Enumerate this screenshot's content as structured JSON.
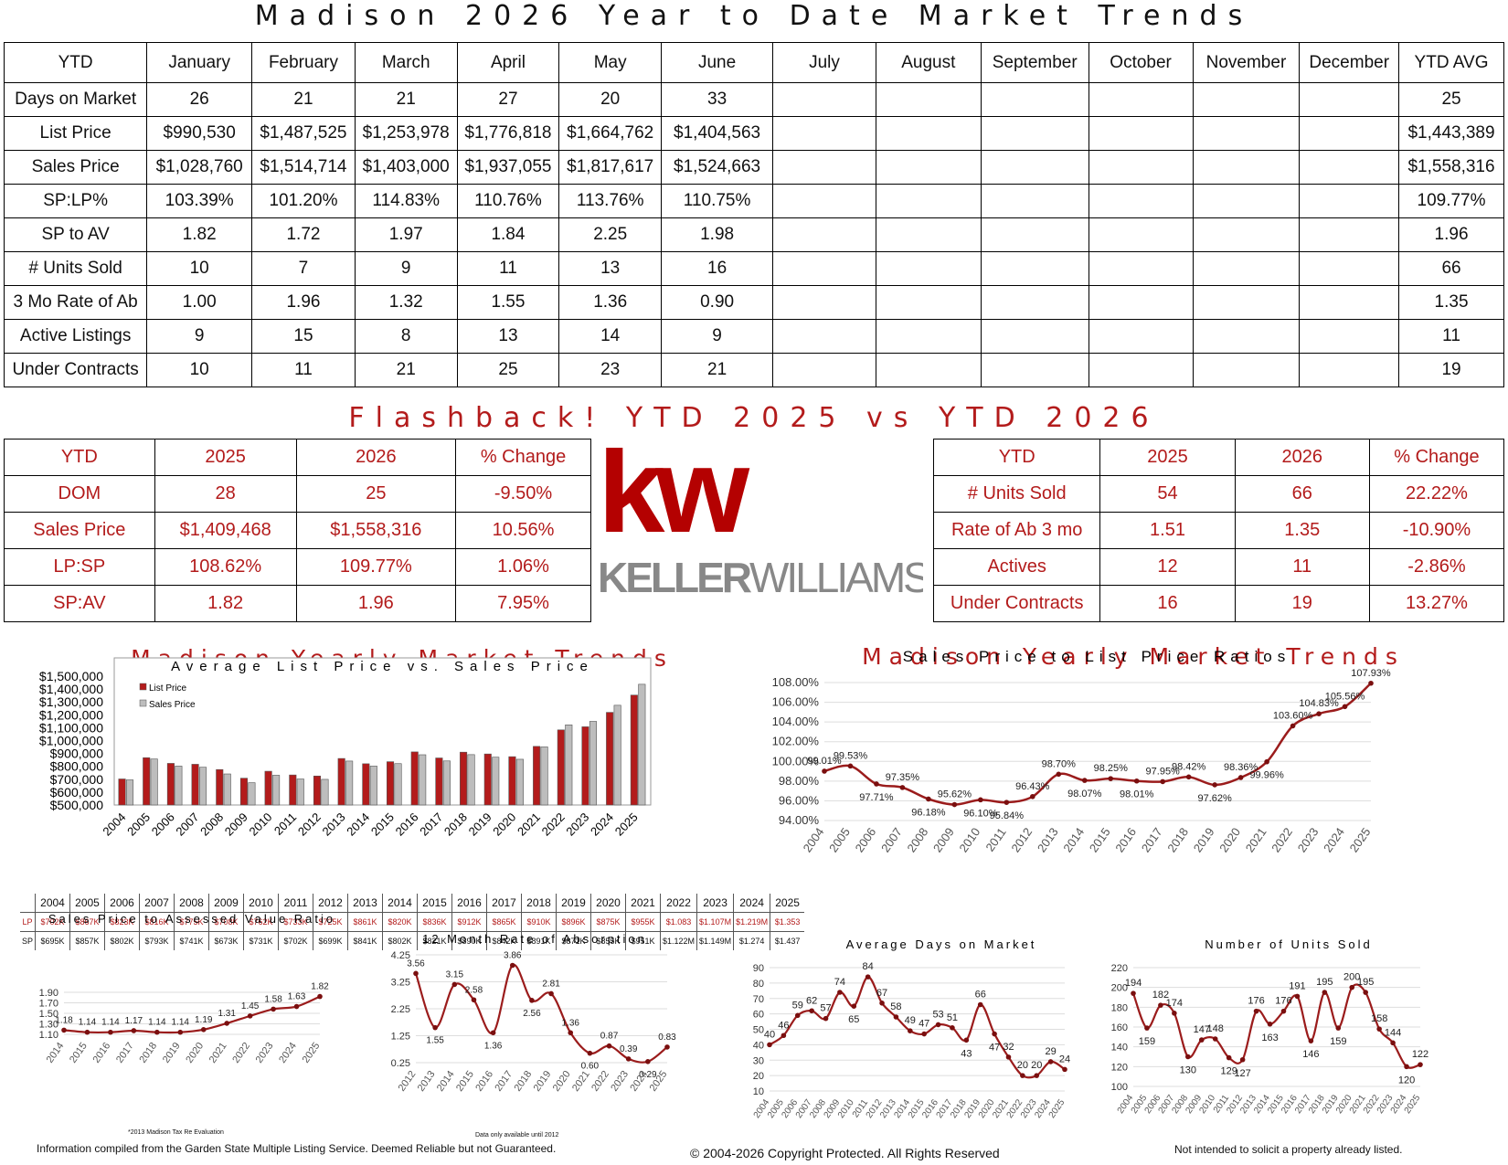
{
  "main_title": "Madison 2026 Year to Date Market Trends",
  "ytd_table": {
    "header": [
      "YTD",
      "January",
      "February",
      "March",
      "April",
      "May",
      "June",
      "July",
      "August",
      "September",
      "October",
      "November",
      "December",
      "YTD AVG"
    ],
    "rows": [
      [
        "Days on Market",
        "26",
        "21",
        "21",
        "27",
        "20",
        "33",
        "",
        "",
        "",
        "",
        "",
        "",
        "25"
      ],
      [
        "List Price",
        "$990,530",
        "$1,487,525",
        "$1,253,978",
        "$1,776,818",
        "$1,664,762",
        "$1,404,563",
        "",
        "",
        "",
        "",
        "",
        "",
        "$1,443,389"
      ],
      [
        "Sales Price",
        "$1,028,760",
        "$1,514,714",
        "$1,403,000",
        "$1,937,055",
        "$1,817,617",
        "$1,524,663",
        "",
        "",
        "",
        "",
        "",
        "",
        "$1,558,316"
      ],
      [
        "SP:LP%",
        "103.39%",
        "101.20%",
        "114.83%",
        "110.76%",
        "113.76%",
        "110.75%",
        "",
        "",
        "",
        "",
        "",
        "",
        "109.77%"
      ],
      [
        "SP to AV",
        "1.82",
        "1.72",
        "1.97",
        "1.84",
        "2.25",
        "1.98",
        "",
        "",
        "",
        "",
        "",
        "",
        "1.96"
      ],
      [
        "# Units Sold",
        "10",
        "7",
        "9",
        "11",
        "13",
        "16",
        "",
        "",
        "",
        "",
        "",
        "",
        "66"
      ],
      [
        "3 Mo Rate of Ab",
        "1.00",
        "1.96",
        "1.32",
        "1.55",
        "1.36",
        "0.90",
        "",
        "",
        "",
        "",
        "",
        "",
        "1.35"
      ],
      [
        "Active Listings",
        "9",
        "15",
        "8",
        "13",
        "14",
        "9",
        "",
        "",
        "",
        "",
        "",
        "",
        "11"
      ],
      [
        "Under Contracts",
        "10",
        "11",
        "21",
        "25",
        "23",
        "21",
        "",
        "",
        "",
        "",
        "",
        "",
        "19"
      ]
    ]
  },
  "flashback_title": "Flashback! YTD 2025 vs YTD 2026",
  "flash_left": [
    [
      "YTD",
      "2025",
      "2026",
      "% Change"
    ],
    [
      "DOM",
      "28",
      "25",
      "-9.50%"
    ],
    [
      "Sales Price",
      "$1,409,468",
      "$1,558,316",
      "10.56%"
    ],
    [
      "LP:SP",
      "108.62%",
      "109.77%",
      "1.06%"
    ],
    [
      "SP:AV",
      "1.82",
      "1.96",
      "7.95%"
    ]
  ],
  "flash_right": [
    [
      "YTD",
      "2025",
      "2026",
      "% Change"
    ],
    [
      "# Units Sold",
      "54",
      "66",
      "22.22%"
    ],
    [
      "Rate of Ab 3 mo",
      "1.51",
      "1.35",
      "-10.90%"
    ],
    [
      "Actives",
      "12",
      "11",
      "-2.86%"
    ],
    [
      "Under Contracts",
      "16",
      "19",
      "13.27%"
    ]
  ],
  "logo": {
    "mark": "kw",
    "name_a": "KELLER",
    "name_b": "WILLIAMS",
    "registered": "®",
    "color_red": "#b40101",
    "color_gray": "#888888"
  },
  "section_titles": {
    "left": "Madison Yearly Market Trends",
    "right": "Madison Yearly Market Trends"
  },
  "lpsp_grid": {
    "years": [
      "2004",
      "2005",
      "2006",
      "2007",
      "2008",
      "2009",
      "2010",
      "2011",
      "2012",
      "2013",
      "2014",
      "2015",
      "2016",
      "2017",
      "2018",
      "2019",
      "2020",
      "2021",
      "2022",
      "2023",
      "2024",
      "2025"
    ],
    "lp_label": "LP",
    "sp_label": "SP",
    "lp": [
      "$702K",
      "$867K",
      "$823K",
      "$816K",
      "$775K",
      "$708K",
      "$762K",
      "$733K",
      "$725K",
      "$861K",
      "$820K",
      "$836K",
      "$912K",
      "$865K",
      "$910K",
      "$896K",
      "$875K",
      "$955K",
      "$1.083",
      "$1.107M",
      "$1.219M",
      "$1.353"
    ],
    "sp": [
      "$695K",
      "$857K",
      "$802K",
      "$793K",
      "$741K",
      "$673K",
      "$731K",
      "$702K",
      "$699K",
      "$841K",
      "$802K",
      "$821K",
      "$890K",
      "$842K",
      "$891K",
      "$871K",
      "$855K",
      "$951K",
      "$1.122M",
      "$1.149M",
      "$1.274",
      "$1.437"
    ]
  },
  "chart_data": [
    {
      "type": "bar",
      "title": "Average List Price vs. Sales Price",
      "categories": [
        "2004",
        "2005",
        "2006",
        "2007",
        "2008",
        "2009",
        "2010",
        "2011",
        "2012",
        "2013",
        "2014",
        "2015",
        "2016",
        "2017",
        "2018",
        "2019",
        "2020",
        "2021",
        "2022",
        "2023",
        "2024",
        "2025"
      ],
      "series": [
        {
          "name": "List Price",
          "color": "#b31b1b",
          "values": [
            702,
            867,
            823,
            816,
            775,
            708,
            762,
            733,
            725,
            861,
            820,
            836,
            912,
            865,
            910,
            896,
            875,
            955,
            1083,
            1107,
            1219,
            1353
          ]
        },
        {
          "name": "Sales Price",
          "color": "#bdbdbd",
          "values": [
            695,
            857,
            802,
            793,
            741,
            673,
            731,
            702,
            699,
            841,
            802,
            821,
            890,
            842,
            891,
            871,
            855,
            951,
            1122,
            1149,
            1274,
            1437
          ]
        }
      ],
      "yticks": [
        "$500,000",
        "$600,000",
        "$700,000",
        "$800,000",
        "$900,000",
        "$1,000,000",
        "$1,100,000",
        "$1,200,000",
        "$1,300,000",
        "$1,400,000",
        "$1,500,000"
      ],
      "ylim": [
        500,
        1500
      ],
      "legend": "top-left"
    },
    {
      "type": "line",
      "title": "Sales Price to List Price Ratios",
      "x": [
        "2004",
        "2005",
        "2006",
        "2007",
        "2008",
        "2009",
        "2010",
        "2011",
        "2012",
        "2013",
        "2014",
        "2015",
        "2016",
        "2017",
        "2018",
        "2019",
        "2020",
        "2021",
        "2022",
        "2023",
        "2024",
        "2025"
      ],
      "values": [
        99.01,
        99.53,
        97.71,
        97.35,
        96.18,
        95.62,
        96.1,
        95.84,
        96.43,
        98.7,
        98.07,
        98.25,
        98.01,
        97.95,
        98.42,
        97.62,
        98.36,
        99.96,
        103.6,
        104.83,
        105.56,
        107.93
      ],
      "labels": [
        "99.01%",
        "99.53%",
        "97.71%",
        "97.35%",
        "96.18%",
        "95.62%",
        "96.10%",
        "95.84%",
        "96.43%",
        "98.70%",
        "98.07%",
        "98.25%",
        "98.01%",
        "97.95%",
        "98.42%",
        "97.62%",
        "98.36%",
        "99.96%",
        "103.60%",
        "104.83%",
        "105.56%",
        "107.93%"
      ],
      "yticks": [
        "94.00%",
        "96.00%",
        "98.00%",
        "100.00%",
        "102.00%",
        "104.00%",
        "106.00%",
        "108.00%"
      ],
      "ylim": [
        94,
        108
      ]
    },
    {
      "type": "line",
      "title": "Sales Price to Assessed Value Ratio",
      "x": [
        "2014",
        "2015",
        "2016",
        "2017",
        "2018",
        "2019",
        "2020",
        "2021",
        "2022",
        "2023",
        "2024",
        "2025"
      ],
      "values": [
        1.18,
        1.14,
        1.14,
        1.17,
        1.14,
        1.14,
        1.19,
        1.31,
        1.45,
        1.58,
        1.63,
        1.82
      ],
      "labels": [
        "1.18",
        "1.14",
        "1.14",
        "1.17",
        "1.14",
        "1.14",
        "1.19",
        "1.31",
        "1.45",
        "1.58",
        "1.63",
        "1.82"
      ],
      "yticks": [
        "1.10",
        "1.30",
        "1.50",
        "1.70",
        "1.90"
      ],
      "ylim": [
        1.1,
        1.9
      ],
      "note": "*2013 Madison Tax Re Evaluation"
    },
    {
      "type": "line",
      "title": "12 Month Rate of Absorption",
      "x": [
        "2012",
        "2013",
        "2014",
        "2015",
        "2016",
        "2017",
        "2018",
        "2019",
        "2020",
        "2021",
        "2022",
        "2023",
        "2024",
        "2025"
      ],
      "values": [
        3.56,
        1.55,
        3.15,
        2.58,
        1.36,
        3.86,
        2.56,
        2.81,
        1.36,
        0.6,
        0.87,
        0.39,
        0.29,
        0.83
      ],
      "labels": [
        "3.56",
        "1.55",
        "3.15",
        "2.58",
        "1.36",
        "3.86",
        "2.56",
        "2.81",
        "1.36",
        "0.60",
        "0.87",
        "0.39",
        "0.29",
        "0.83"
      ],
      "yticks": [
        "0.25",
        "1.25",
        "2.25",
        "3.25",
        "4.25"
      ],
      "ylim": [
        0.25,
        4.25
      ],
      "note": "Data only available until 2012"
    },
    {
      "type": "line",
      "title": "Average Days on Market",
      "x": [
        "2004",
        "2005",
        "2006",
        "2007",
        "2008",
        "2009",
        "2010",
        "2011",
        "2012",
        "2013",
        "2014",
        "2015",
        "2016",
        "2017",
        "2018",
        "2019",
        "2020",
        "2021",
        "2022",
        "2023",
        "2024",
        "2025"
      ],
      "values": [
        40,
        46,
        59,
        62,
        57,
        74,
        65,
        84,
        67,
        58,
        49,
        47,
        53,
        51,
        43,
        66,
        47,
        32,
        20,
        20,
        29,
        24
      ],
      "labels": [
        "40",
        "46",
        "59",
        "62",
        "57",
        "74",
        "65",
        "84",
        "67",
        "58",
        "49",
        "47",
        "53",
        "51",
        "43",
        "66",
        "47",
        "32",
        "20",
        "20",
        "29",
        "24"
      ],
      "yticks": [
        "10",
        "20",
        "30",
        "40",
        "50",
        "60",
        "70",
        "80",
        "90"
      ],
      "ylim": [
        10,
        90
      ]
    },
    {
      "type": "line",
      "title": "Number of Units Sold",
      "x": [
        "2004",
        "2005",
        "2006",
        "2007",
        "2008",
        "2009",
        "2010",
        "2011",
        "2012",
        "2013",
        "2014",
        "2015",
        "2016",
        "2017",
        "2018",
        "2019",
        "2020",
        "2021",
        "2022",
        "2023",
        "2024",
        "2025"
      ],
      "values": [
        194,
        159,
        182,
        174,
        130,
        147,
        148,
        129,
        127,
        176,
        163,
        176,
        191,
        146,
        195,
        159,
        200,
        195,
        158,
        144,
        120,
        122
      ],
      "labels": [
        "194",
        "159",
        "182",
        "174",
        "130",
        "147",
        "148",
        "129",
        "127",
        "176",
        "163",
        "176",
        "191",
        "146",
        "195",
        "159",
        "200",
        "195",
        "158",
        "144",
        "120",
        "122"
      ],
      "yticks": [
        "100",
        "120",
        "140",
        "160",
        "180",
        "200",
        "220"
      ],
      "ylim": [
        100,
        220
      ]
    }
  ],
  "footer": {
    "left": "Information compiled from the Garden State Multiple Listing Service.  Deemed Reliable but not Guaranteed.",
    "center": "© 2004-2026 Copyright Protected.  All Rights Reserved",
    "right": "Not intended to solicit a property already listed."
  }
}
